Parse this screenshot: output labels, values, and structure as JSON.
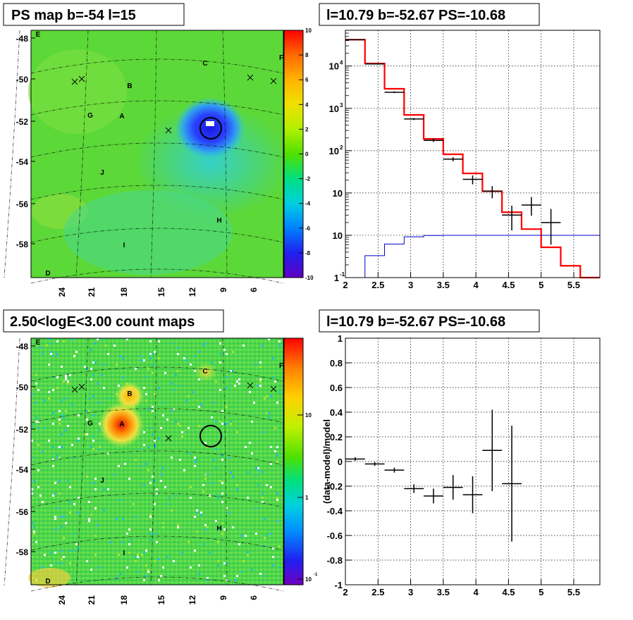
{
  "panels": {
    "ps_map": {
      "title": "PS map b=-54 l=15",
      "y_ticks": [
        "-48",
        "-50",
        "-52",
        "-54",
        "-56",
        "-58"
      ],
      "x_ticks": [
        "24",
        "21",
        "18",
        "15",
        "12",
        "9",
        "6"
      ],
      "colorbar_ticks": [
        "10",
        "8",
        "6",
        "4",
        "2",
        "0",
        "-2",
        "-4",
        "-6",
        "-8",
        "-10"
      ],
      "colorbar_stops": [
        "#ff0000",
        "#ff6a00",
        "#ffb400",
        "#f0e000",
        "#b0f000",
        "#50e000",
        "#00e080",
        "#00d0e0",
        "#0080ff",
        "#2020f0",
        "#6000c0"
      ]
    },
    "count_map": {
      "title": "2.50<logE<3.00 count maps",
      "y_ticks": [
        "-48",
        "-50",
        "-52",
        "-54",
        "-56",
        "-58"
      ],
      "x_ticks": [
        "24",
        "21",
        "18",
        "15",
        "12",
        "9",
        "6"
      ],
      "colorbar_ticks": [
        "10",
        "1",
        "10"
      ],
      "colorbar_tick_exp": "-1"
    },
    "sources": {
      "labels": [
        "E",
        "F",
        "C",
        "B",
        "G",
        "A",
        "J",
        "H",
        "I",
        "D"
      ]
    }
  },
  "chart_data": [
    {
      "type": "line",
      "title": "l=10.79 b=-52.67 PS=-10.68",
      "xlabel": "",
      "ylabel": "",
      "x_scale": "linear",
      "y_scale": "log",
      "xlim": [
        2,
        5.9
      ],
      "ylim": [
        0.1,
        70000
      ],
      "x_tick_labels": [
        "2",
        "2.5",
        "3",
        "3.5",
        "4",
        "4.5",
        "5",
        "5.5"
      ],
      "y_tick_labels": [
        "1",
        "10",
        "10",
        "10",
        "10",
        "10",
        "10"
      ],
      "y_tick_exps": [
        "-1",
        "",
        "",
        "2",
        "3",
        "4",
        ""
      ],
      "grid": true,
      "series": [
        {
          "style": "step",
          "color": "#ff0000",
          "bin_edges": [
            2.0,
            2.3,
            2.6,
            2.9,
            3.2,
            3.5,
            3.8,
            4.1,
            4.4,
            4.7,
            5.0,
            5.3,
            5.6,
            5.9
          ],
          "values": [
            42000,
            11500,
            2900,
            700,
            190,
            82,
            29,
            11,
            3.5,
            1.4,
            0.52,
            0.19,
            0.1
          ]
        },
        {
          "style": "step",
          "color": "#0000cc",
          "bin_edges": [
            2.0,
            2.3,
            2.6,
            2.9,
            3.2,
            3.5,
            3.8,
            4.1,
            4.4,
            4.7,
            5.0,
            5.3,
            5.6,
            5.9
          ],
          "values": [
            0.1,
            0.33,
            0.62,
            0.92,
            0.99,
            1.0,
            1.0,
            1.0,
            1.0,
            1.0,
            1.0,
            1.0,
            1.0
          ]
        },
        {
          "style": "errorbars",
          "color": "#000000",
          "x": [
            2.15,
            2.45,
            2.75,
            3.05,
            3.35,
            3.65,
            3.95,
            4.25,
            4.55,
            4.85,
            5.15
          ],
          "x_err": 0.15,
          "y": [
            42000,
            11200,
            2400,
            560,
            175,
            63,
            21,
            11,
            3.0,
            5.2,
            2.0
          ],
          "y_lo": [
            41500,
            11000,
            2300,
            530,
            160,
            56,
            16,
            7.5,
            1.3,
            2.9,
            0.6
          ],
          "y_hi": [
            42500,
            11400,
            2500,
            590,
            190,
            70,
            26,
            14.5,
            5.0,
            8.0,
            4.2
          ]
        }
      ]
    },
    {
      "type": "scatter",
      "title": "l=10.79 b=-52.67 PS=-10.68",
      "xlabel": "",
      "ylabel": "(data-model)/model",
      "xlim": [
        2,
        5.9
      ],
      "ylim": [
        -1,
        1
      ],
      "x_tick_labels": [
        "2",
        "2.5",
        "3",
        "3.5",
        "4",
        "4.5",
        "5",
        "5.5"
      ],
      "y_tick_labels": [
        "1",
        "0.8",
        "0.6",
        "0.4",
        "0.2",
        "0",
        "-0.2",
        "-0.4",
        "-0.6",
        "-0.8",
        "-1"
      ],
      "grid": true,
      "series": [
        {
          "style": "errorbars",
          "color": "#000000",
          "x": [
            2.15,
            2.45,
            2.75,
            3.05,
            3.35,
            3.65,
            3.95,
            4.25,
            4.55
          ],
          "x_err": 0.15,
          "y": [
            0.02,
            -0.02,
            -0.07,
            -0.22,
            -0.28,
            -0.21,
            -0.27,
            0.09,
            -0.18
          ],
          "y_err": [
            0.015,
            0.015,
            0.02,
            0.035,
            0.06,
            0.1,
            0.15,
            0.33,
            0.47
          ]
        }
      ]
    }
  ]
}
